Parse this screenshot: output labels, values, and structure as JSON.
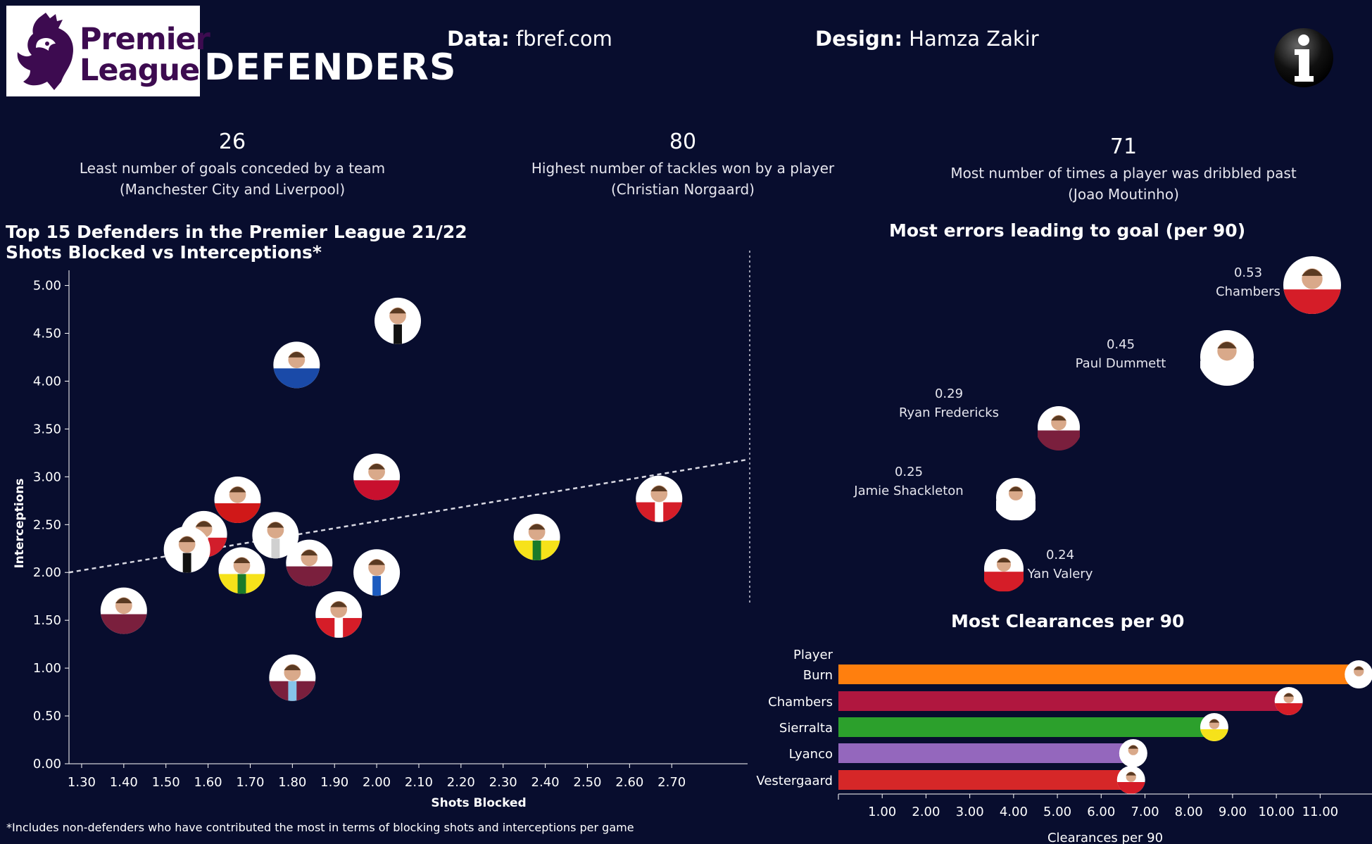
{
  "header": {
    "logo_line1": "Premier",
    "logo_line2": "League",
    "title": "DEFENDERS",
    "data_label": "Data:",
    "data_value": " fbref.com",
    "design_label": "Design:",
    "design_value": " Hamza Zakir",
    "info_icon": "info-icon"
  },
  "stats": [
    {
      "value": "26",
      "line1": "Least number of goals conceded by a team",
      "line2": "(Manchester City and Liverpool)"
    },
    {
      "value": "80",
      "line1": "Highest number of tackles won by a player",
      "line2": "(Christian Norgaard)"
    },
    {
      "value": "71",
      "line1": "Most number of times a player was dribbled past",
      "line2": "(Joao Moutinho)"
    }
  ],
  "scatter_title1": "Top 15 Defenders in the Premier League 21/22",
  "scatter_title2": "Shots Blocked vs Interceptions*",
  "errors_title": "Most errors leading to goal (per 90)",
  "clearances_title": "Most Clearances per 90",
  "footnote": "*Includes non-defenders who have contributed the most in terms of blocking shots and interceptions per game",
  "colors": {
    "background": "#080d2e",
    "burn": "#ff7f0e",
    "chambers": "#b0173f",
    "sierralta": "#2ca02c",
    "lyanco": "#9467bd",
    "vestergaard": "#d62728"
  },
  "chart_data": [
    {
      "type": "scatter",
      "xlabel": "Shots Blocked",
      "ylabel": "Interceptions",
      "xlim": [
        1.27,
        2.88
      ],
      "ylim": [
        0,
        5.1
      ],
      "xticks": [
        "1.30",
        "1.40",
        "1.50",
        "1.60",
        "1.70",
        "1.80",
        "1.90",
        "2.00",
        "2.10",
        "2.20",
        "2.30",
        "2.40",
        "2.50",
        "2.60",
        "2.70"
      ],
      "yticks": [
        "0.00",
        "0.50",
        "1.00",
        "1.50",
        "2.00",
        "2.50",
        "3.00",
        "3.50",
        "4.00",
        "4.50",
        "5.00"
      ],
      "trendline": {
        "x": [
          1.27,
          2.88
        ],
        "y": [
          2.0,
          3.18
        ],
        "style": "dashed"
      },
      "points": [
        {
          "x": 2.05,
          "y": 4.63,
          "kit": "#ffffff",
          "stripe": "#111111"
        },
        {
          "x": 1.81,
          "y": 4.17,
          "kit": "#1a4aa8",
          "stripe": "#1a4aa8"
        },
        {
          "x": 2.0,
          "y": 3.0,
          "kit": "#c8102e",
          "stripe": "#c8102e"
        },
        {
          "x": 1.67,
          "y": 2.76,
          "kit": "#d01818",
          "stripe": "#d01818"
        },
        {
          "x": 2.67,
          "y": 2.77,
          "kit": "#d51d28",
          "stripe": "#ffffff"
        },
        {
          "x": 2.38,
          "y": 2.37,
          "kit": "#f6e21a",
          "stripe": "#1a7a2a"
        },
        {
          "x": 1.59,
          "y": 2.4,
          "kit": "#d21e2b",
          "stripe": "#ffffff"
        },
        {
          "x": 1.76,
          "y": 2.39,
          "kit": "#ffffff",
          "stripe": "#d0d0d0"
        },
        {
          "x": 1.55,
          "y": 2.24,
          "kit": "#ffffff",
          "stripe": "#111111"
        },
        {
          "x": 1.84,
          "y": 2.1,
          "kit": "#7a1f3d",
          "stripe": "#7a1f3d"
        },
        {
          "x": 1.68,
          "y": 2.02,
          "kit": "#f6e21a",
          "stripe": "#1a7a2a"
        },
        {
          "x": 2.0,
          "y": 2.0,
          "kit": "#ffffff",
          "stripe": "#1c5bbf"
        },
        {
          "x": 1.4,
          "y": 1.6,
          "kit": "#7a1f3d",
          "stripe": "#7a1f3d"
        },
        {
          "x": 1.91,
          "y": 1.56,
          "kit": "#d51d28",
          "stripe": "#ffffff"
        },
        {
          "x": 1.8,
          "y": 0.9,
          "kit": "#7a1f3d",
          "stripe": "#87c5ea"
        }
      ]
    },
    {
      "type": "scatter",
      "title": "Most errors leading to goal (per 90)",
      "points": [
        {
          "name": "Chambers",
          "value": 0.53,
          "label": "0.53",
          "kit": "#d51d28"
        },
        {
          "name": "Paul Dummett",
          "value": 0.45,
          "label": "0.45",
          "kit": "#ffffff"
        },
        {
          "name": "Ryan Fredericks",
          "value": 0.29,
          "label": "0.29",
          "kit": "#7a1f3d"
        },
        {
          "name": "Jamie Shackleton",
          "value": 0.25,
          "label": "0.25",
          "kit": "#ffffff"
        },
        {
          "name": "Yan Valery",
          "value": 0.24,
          "label": "0.24",
          "kit": "#d51d28"
        }
      ]
    },
    {
      "type": "bar",
      "title": "Most Clearances per 90",
      "header": "Player",
      "xlabel": "Clearances per 90",
      "xlim": [
        0,
        12.2
      ],
      "xticks": [
        "1.00",
        "2.00",
        "3.00",
        "4.00",
        "5.00",
        "6.00",
        "7.00",
        "8.00",
        "9.00",
        "10.00",
        "11.00"
      ],
      "categories": [
        "Burn",
        "Chambers",
        "Sierralta",
        "Lyanco",
        "Vestergaard"
      ],
      "values": [
        11.85,
        10.25,
        8.55,
        6.7,
        6.65
      ]
    }
  ]
}
